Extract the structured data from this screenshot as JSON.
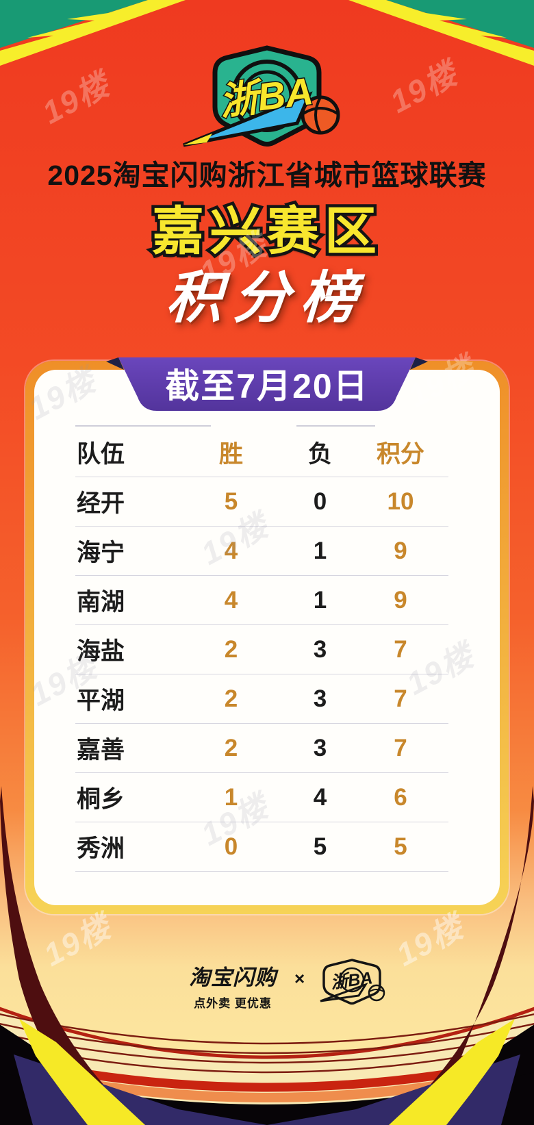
{
  "poster": {
    "logo_text": "浙BA",
    "league_title": "2025淘宝闪购浙江省城市篮球联赛",
    "division": "嘉兴赛区",
    "board_title": "积分榜",
    "banner_date": "截至7月20日",
    "watermark": "19楼"
  },
  "table": {
    "headers": [
      "队伍",
      "胜",
      "负",
      "积分"
    ],
    "rows": [
      {
        "team": "经开",
        "wins": "5",
        "losses": "0",
        "points": "10"
      },
      {
        "team": "海宁",
        "wins": "4",
        "losses": "1",
        "points": "9"
      },
      {
        "team": "南湖",
        "wins": "4",
        "losses": "1",
        "points": "9"
      },
      {
        "team": "海盐",
        "wins": "2",
        "losses": "3",
        "points": "7"
      },
      {
        "team": "平湖",
        "wins": "2",
        "losses": "3",
        "points": "7"
      },
      {
        "team": "嘉善",
        "wins": "2",
        "losses": "3",
        "points": "7"
      },
      {
        "team": "桐乡",
        "wins": "1",
        "losses": "4",
        "points": "6"
      },
      {
        "team": "秀洲",
        "wins": "0",
        "losses": "5",
        "points": "5"
      }
    ]
  },
  "footer": {
    "sponsor_name": "淘宝闪购",
    "sponsor_slogan": "点外卖 更优惠",
    "separator": "×",
    "logo_text": "浙BA"
  },
  "colors": {
    "top_green": "#189a74",
    "stripe_yellow": "#f7ee2b",
    "bg_red": "#ef3a20",
    "card_border_top": "#ef8f28",
    "card_border_bottom": "#f6d356",
    "banner_purple": "#5a38a6",
    "gold_text": "#c8872b",
    "black_text": "#1c1c1c",
    "footer_cream": "#f8e9b4",
    "footer_navy": "#322a68",
    "bolt_yellow": "#f6e926"
  }
}
